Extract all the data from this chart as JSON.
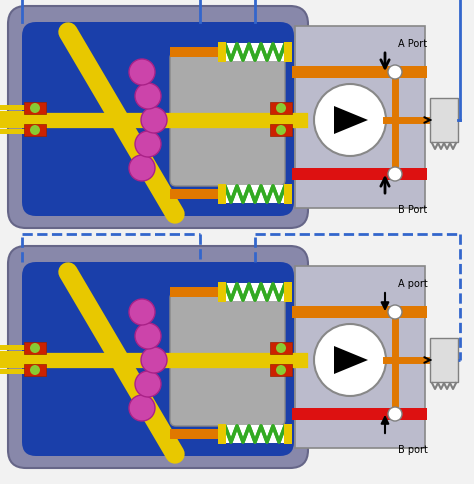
{
  "bg_color": "#f2f2f2",
  "colors": {
    "blue_outer": "#4466cc",
    "blue_dark": "#1a3faa",
    "gray_outer": "#8888aa",
    "gray_valve": "#aaaaaa",
    "gray_light": "#bbbbcc",
    "yellow": "#e8c800",
    "orange": "#e07800",
    "red": "#dd1111",
    "green_spring": "#33aa22",
    "pink": "#cc44aa",
    "white": "#ffffff",
    "dashed_blue": "#3366cc",
    "teal": "#44aaaa",
    "red_bearing": "#cc2200",
    "green_bead": "#88cc33"
  },
  "top": {
    "a_label": "A Port",
    "b_label": "B Port",
    "blue_solid": true
  },
  "bot": {
    "a_label": "A port",
    "b_label": "B port",
    "blue_dashed": true
  }
}
